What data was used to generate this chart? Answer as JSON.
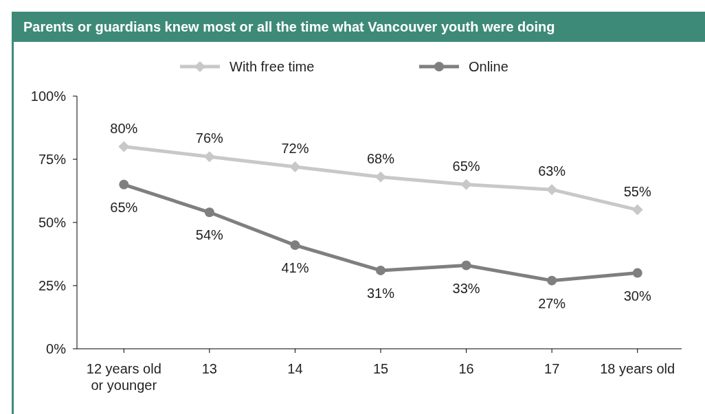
{
  "chart_data": {
    "type": "line",
    "title": "Parents or guardians knew most or all the time what Vancouver youth were doing",
    "categories": [
      "12 years old\nor younger",
      "13",
      "14",
      "15",
      "16",
      "17",
      "18 years old"
    ],
    "series": [
      {
        "name": "With free time",
        "color": "#c8c8c8",
        "marker": "diamond",
        "values": [
          80,
          76,
          72,
          68,
          65,
          63,
          55
        ],
        "value_labels": [
          "80%",
          "76%",
          "72%",
          "68%",
          "65%",
          "63%",
          "55%"
        ]
      },
      {
        "name": "Online",
        "color": "#7f7f7f",
        "marker": "circle",
        "values": [
          65,
          54,
          41,
          31,
          33,
          27,
          30
        ],
        "value_labels": [
          "65%",
          "54%",
          "41%",
          "31%",
          "33%",
          "27%",
          "30%"
        ]
      }
    ],
    "ylim": [
      0,
      100
    ],
    "yticks": [
      {
        "value": 0,
        "label": "0%"
      },
      {
        "value": 25,
        "label": "25%"
      },
      {
        "value": 50,
        "label": "50%"
      },
      {
        "value": 75,
        "label": "75%"
      },
      {
        "value": 100,
        "label": "100%"
      }
    ],
    "legend": "top",
    "grid": false,
    "line_style": "solid"
  }
}
